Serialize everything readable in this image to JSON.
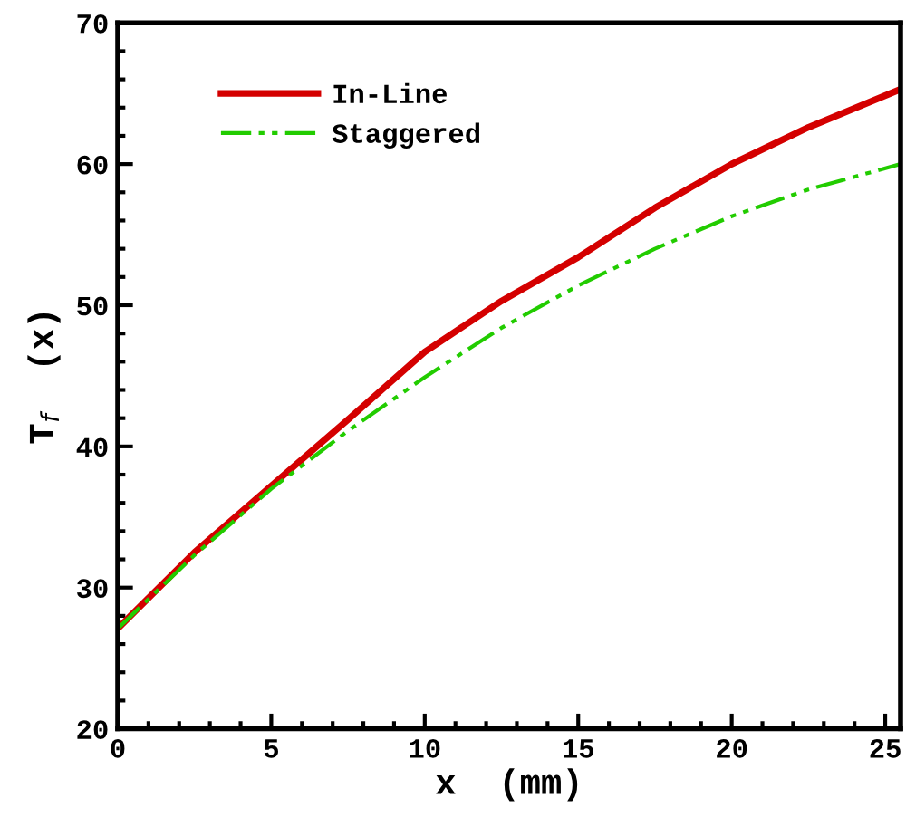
{
  "chart_data": {
    "type": "line",
    "xlabel": "x  (mm)",
    "ylabel": "T$_{f}$  (x)",
    "xlim": [
      0,
      25.5
    ],
    "ylim": [
      20,
      70
    ],
    "xticks": [
      0,
      5,
      10,
      15,
      20,
      25
    ],
    "yticks": [
      20,
      30,
      40,
      50,
      60,
      70
    ],
    "grid": false,
    "legend": "top left",
    "marker": "none",
    "series": [
      {
        "name": "In-Line",
        "color": "#d40000",
        "line_style": "solid",
        "x": [
          0,
          2.5,
          5,
          7.5,
          10,
          12.5,
          15,
          17.5,
          20,
          22.5,
          25.5
        ],
        "values": [
          27.1,
          32.5,
          37.2,
          41.9,
          46.7,
          50.3,
          53.4,
          56.9,
          60.0,
          62.6,
          65.3
        ]
      },
      {
        "name": "Staggered",
        "color": "#22cc00",
        "line_style": "dashdotdot",
        "x": [
          0,
          2.5,
          5,
          7.5,
          10,
          12.5,
          15,
          17.5,
          20,
          22.5,
          25.5
        ],
        "values": [
          27.1,
          32.3,
          37.0,
          41.1,
          44.9,
          48.4,
          51.4,
          54.0,
          56.3,
          58.2,
          60.0
        ]
      }
    ]
  }
}
